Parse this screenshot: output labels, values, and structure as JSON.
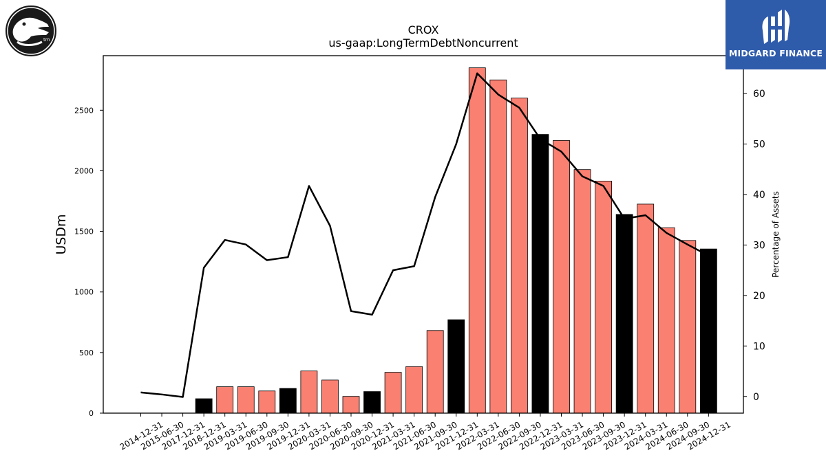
{
  "company_logo": {
    "name": "crocs-logo",
    "mark": "tm"
  },
  "brand": {
    "name": "MIDGARD FINANCE",
    "color": "#2f5bab"
  },
  "chart_data": {
    "type": "bar",
    "title": "CROX",
    "subtitle": "us-gaap:LongTermDebtNoncurrent",
    "ylabel": "USDm",
    "y2label": "Percentage of Assets",
    "ylim": [
      0,
      2950
    ],
    "y2lim": [
      -3.3,
      67.5
    ],
    "yticks": [
      0,
      500,
      1000,
      1500,
      2000,
      2500
    ],
    "y2ticks": [
      0,
      10,
      20,
      30,
      40,
      50,
      60
    ],
    "categories": [
      "2014-12-31",
      "2015-06-30",
      "2017-12-31",
      "2018-12-31",
      "2019-03-31",
      "2019-06-30",
      "2019-09-30",
      "2019-12-31",
      "2020-03-31",
      "2020-06-30",
      "2020-09-30",
      "2020-12-31",
      "2021-03-31",
      "2021-06-30",
      "2021-09-30",
      "2021-12-31",
      "2022-03-31",
      "2022-06-30",
      "2022-09-30",
      "2022-12-31",
      "2023-03-31",
      "2023-06-30",
      "2023-09-30",
      "2023-12-31",
      "2024-03-31",
      "2024-06-30",
      "2024-09-30",
      "2024-12-31"
    ],
    "values": [
      0,
      0,
      0,
      119,
      218,
      218,
      183,
      204,
      348,
      273,
      138,
      178,
      337,
      384,
      682,
      771,
      2850,
      2750,
      2600,
      2300,
      2250,
      2010,
      1915,
      1640,
      1725,
      1530,
      1425,
      1355
    ],
    "annual": [
      false,
      false,
      false,
      true,
      false,
      false,
      false,
      true,
      false,
      false,
      false,
      true,
      false,
      false,
      false,
      true,
      false,
      false,
      false,
      true,
      false,
      false,
      false,
      true,
      false,
      false,
      false,
      true
    ],
    "colors": {
      "annual": "#000000",
      "quarter": "#fa8072"
    },
    "pct_assets": [
      0.8,
      0.4,
      -0.1,
      25.5,
      31.0,
      30.1,
      27.0,
      27.6,
      41.7,
      33.8,
      16.9,
      16.2,
      25.0,
      25.8,
      39.5,
      50.0,
      64.0,
      59.8,
      57.2,
      51.0,
      48.5,
      43.6,
      41.7,
      35.2,
      35.9,
      32.4,
      30.1,
      27.9
    ],
    "legend": "none",
    "grid": false
  }
}
